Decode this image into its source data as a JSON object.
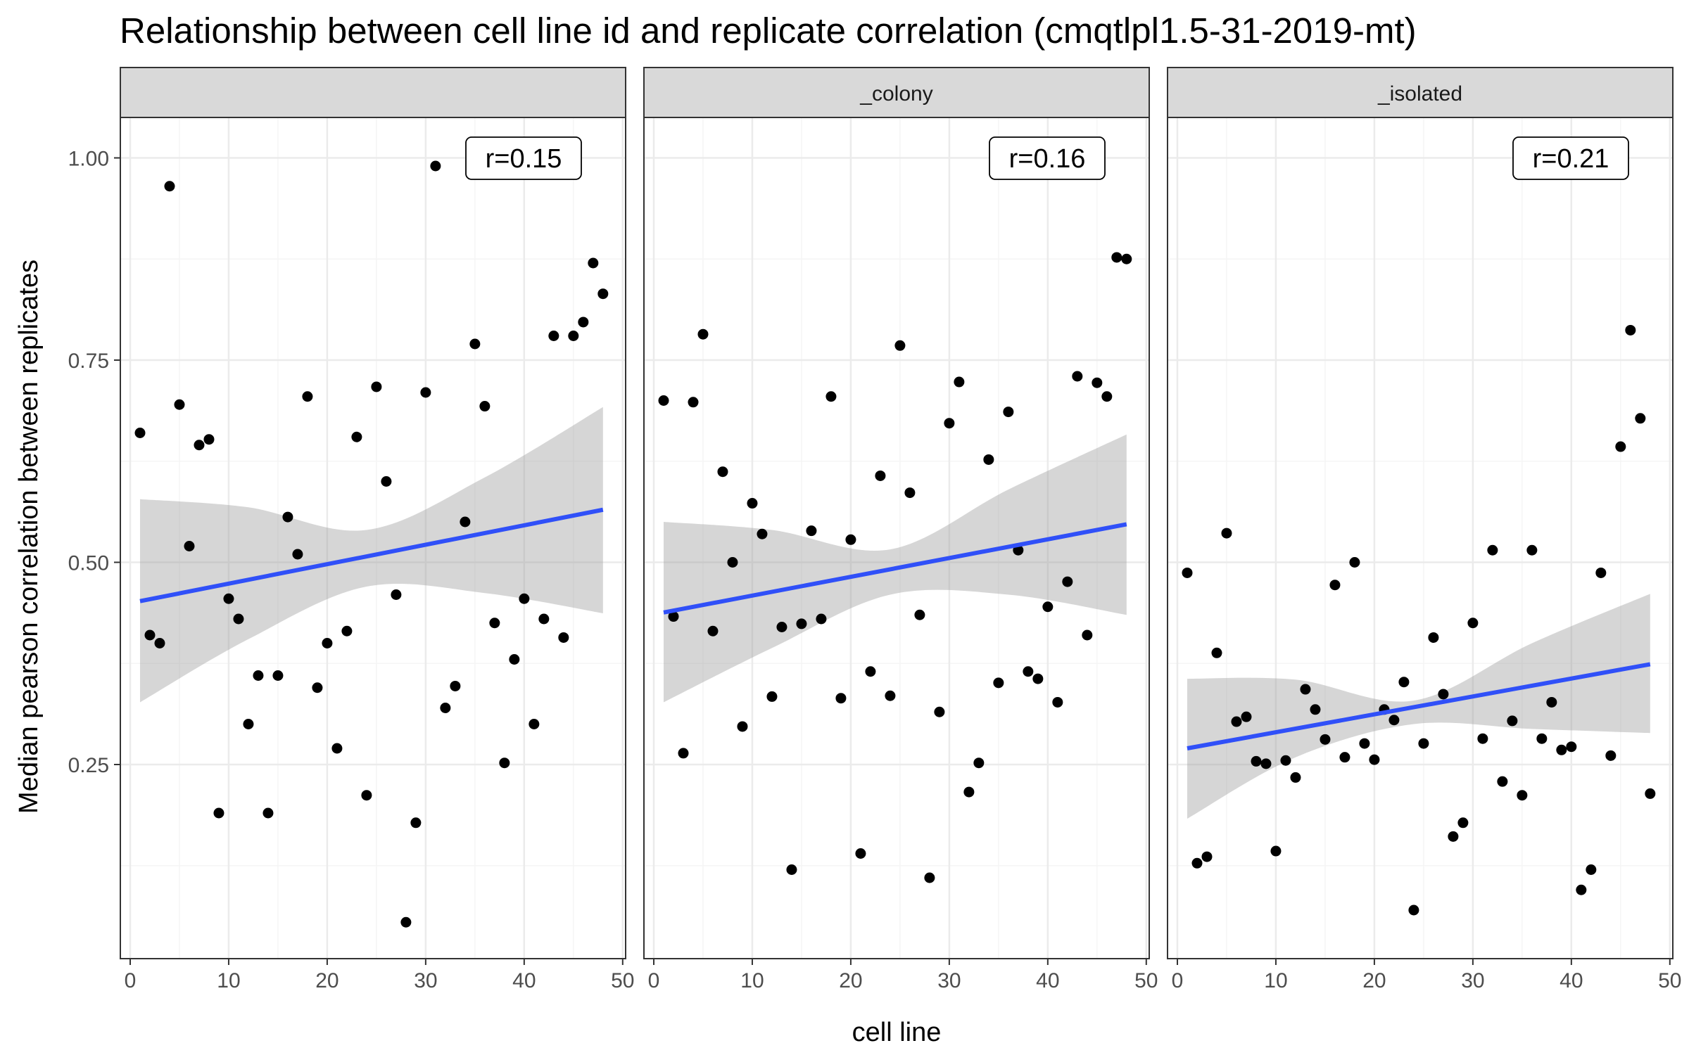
{
  "chart_data": {
    "type": "scatter",
    "title": "Relationship between cell line id and replicate correlation (cmqtlpl1.5-31-2019-mt)",
    "xlabel": "cell line",
    "ylabel": "Median pearson correlation between replicates",
    "xlim": [
      -1,
      50.3
    ],
    "ylim": [
      0.01,
      1.05
    ],
    "x_ticks": [
      0,
      10,
      20,
      30,
      40,
      50
    ],
    "x_tick_labels": [
      "0",
      "10",
      "20",
      "30",
      "40",
      "50"
    ],
    "y_ticks": [
      0.25,
      0.5,
      0.75,
      1.0
    ],
    "y_tick_labels": [
      "0.25",
      "0.50",
      "0.75",
      "1.00"
    ],
    "grid": true,
    "colors": {
      "points": "#000000",
      "fit_line": "#3050F8",
      "confidence_band": "#999999",
      "strip_background": "#D9D9D9",
      "grid_major": "#EBEBEB",
      "grid_minor": "#F5F5F5"
    },
    "facets": [
      {
        "label": "",
        "annotation": "r=0.15",
        "points": [
          [
            1,
            0.66
          ],
          [
            2,
            0.41
          ],
          [
            3,
            0.4
          ],
          [
            4,
            0.965
          ],
          [
            5,
            0.695
          ],
          [
            6,
            0.52
          ],
          [
            7,
            0.645
          ],
          [
            8,
            0.652
          ],
          [
            9,
            0.19
          ],
          [
            10,
            0.455
          ],
          [
            11,
            0.43
          ],
          [
            12,
            0.3
          ],
          [
            13,
            0.36
          ],
          [
            14,
            0.19
          ],
          [
            15,
            0.36
          ],
          [
            16,
            0.556
          ],
          [
            17,
            0.51
          ],
          [
            18,
            0.705
          ],
          [
            19,
            0.345
          ],
          [
            20,
            0.4
          ],
          [
            21,
            0.27
          ],
          [
            22,
            0.415
          ],
          [
            23,
            0.655
          ],
          [
            24,
            0.212
          ],
          [
            25,
            0.717
          ],
          [
            26,
            0.6
          ],
          [
            27,
            0.46
          ],
          [
            28,
            0.055
          ],
          [
            29,
            0.178
          ],
          [
            30,
            0.71
          ],
          [
            31,
            0.99
          ],
          [
            32,
            0.32
          ],
          [
            33,
            0.347
          ],
          [
            34,
            0.55
          ],
          [
            35,
            0.77
          ],
          [
            36,
            0.693
          ],
          [
            37,
            0.425
          ],
          [
            38,
            0.252
          ],
          [
            39,
            0.38
          ],
          [
            40,
            0.455
          ],
          [
            41,
            0.3
          ],
          [
            42,
            0.43
          ],
          [
            43,
            0.78
          ],
          [
            44,
            0.407
          ],
          [
            45,
            0.78
          ],
          [
            46,
            0.797
          ],
          [
            47,
            0.87
          ],
          [
            48,
            0.832
          ]
        ],
        "fit": [
          [
            1,
            0.452
          ],
          [
            48,
            0.565
          ]
        ],
        "band": [
          [
            1,
            0.327,
            0.578
          ],
          [
            12,
            0.405,
            0.568
          ],
          [
            24,
            0.47,
            0.54
          ],
          [
            36,
            0.462,
            0.605
          ],
          [
            48,
            0.437,
            0.692
          ]
        ]
      },
      {
        "label": "_colony",
        "annotation": "r=0.16",
        "points": [
          [
            1,
            0.7
          ],
          [
            2,
            0.433
          ],
          [
            3,
            0.264
          ],
          [
            4,
            0.698
          ],
          [
            5,
            0.782
          ],
          [
            6,
            0.415
          ],
          [
            7,
            0.612
          ],
          [
            8,
            0.5
          ],
          [
            9,
            0.297
          ],
          [
            10,
            0.573
          ],
          [
            11,
            0.535
          ],
          [
            12,
            0.334
          ],
          [
            13,
            0.42
          ],
          [
            14,
            0.12
          ],
          [
            15,
            0.424
          ],
          [
            16,
            0.539
          ],
          [
            17,
            0.43
          ],
          [
            18,
            0.705
          ],
          [
            19,
            0.332
          ],
          [
            20,
            0.528
          ],
          [
            21,
            0.14
          ],
          [
            22,
            0.365
          ],
          [
            23,
            0.607
          ],
          [
            24,
            0.335
          ],
          [
            25,
            0.768
          ],
          [
            26,
            0.586
          ],
          [
            27,
            0.435
          ],
          [
            28,
            0.11
          ],
          [
            29,
            0.315
          ],
          [
            30,
            0.672
          ],
          [
            31,
            0.723
          ],
          [
            32,
            0.216
          ],
          [
            33,
            0.252
          ],
          [
            34,
            0.627
          ],
          [
            35,
            0.351
          ],
          [
            36,
            0.686
          ],
          [
            37,
            0.515
          ],
          [
            38,
            0.365
          ],
          [
            39,
            0.356
          ],
          [
            40,
            0.445
          ],
          [
            41,
            0.327
          ],
          [
            42,
            0.476
          ],
          [
            43,
            0.73
          ],
          [
            44,
            0.41
          ],
          [
            45,
            0.722
          ],
          [
            46,
            0.705
          ],
          [
            47,
            0.877
          ],
          [
            48,
            0.875
          ]
        ],
        "fit": [
          [
            1,
            0.438
          ],
          [
            48,
            0.547
          ]
        ],
        "band": [
          [
            1,
            0.327,
            0.55
          ],
          [
            12,
            0.394,
            0.54
          ],
          [
            24,
            0.46,
            0.516
          ],
          [
            36,
            0.46,
            0.59
          ],
          [
            48,
            0.435,
            0.658
          ]
        ]
      },
      {
        "label": "_isolated",
        "annotation": "r=0.21",
        "points": [
          [
            1,
            0.487
          ],
          [
            2,
            0.128
          ],
          [
            3,
            0.136
          ],
          [
            4,
            0.388
          ],
          [
            5,
            0.536
          ],
          [
            6,
            0.303
          ],
          [
            7,
            0.309
          ],
          [
            8,
            0.254
          ],
          [
            9,
            0.251
          ],
          [
            10,
            0.143
          ],
          [
            11,
            0.255
          ],
          [
            12,
            0.234
          ],
          [
            13,
            0.343
          ],
          [
            14,
            0.318
          ],
          [
            15,
            0.281
          ],
          [
            16,
            0.472
          ],
          [
            17,
            0.259
          ],
          [
            18,
            0.5
          ],
          [
            19,
            0.276
          ],
          [
            20,
            0.256
          ],
          [
            21,
            0.318
          ],
          [
            22,
            0.305
          ],
          [
            23,
            0.352
          ],
          [
            24,
            0.07
          ],
          [
            25,
            0.276
          ],
          [
            26,
            0.407
          ],
          [
            27,
            0.337
          ],
          [
            28,
            0.161
          ],
          [
            29,
            0.178
          ],
          [
            30,
            0.425
          ],
          [
            31,
            0.282
          ],
          [
            32,
            0.515
          ],
          [
            33,
            0.229
          ],
          [
            34,
            0.304
          ],
          [
            35,
            0.212
          ],
          [
            36,
            0.515
          ],
          [
            37,
            0.282
          ],
          [
            38,
            0.327
          ],
          [
            39,
            0.268
          ],
          [
            40,
            0.272
          ],
          [
            41,
            0.095
          ],
          [
            42,
            0.12
          ],
          [
            43,
            0.487
          ],
          [
            44,
            0.261
          ],
          [
            45,
            0.643
          ],
          [
            46,
            0.787
          ],
          [
            47,
            0.678
          ],
          [
            48,
            0.214
          ]
        ],
        "fit": [
          [
            1,
            0.27
          ],
          [
            48,
            0.374
          ]
        ],
        "band": [
          [
            1,
            0.183,
            0.356
          ],
          [
            12,
            0.259,
            0.355
          ],
          [
            24,
            0.3,
            0.329
          ],
          [
            36,
            0.294,
            0.4
          ],
          [
            48,
            0.289,
            0.461
          ]
        ]
      }
    ]
  }
}
